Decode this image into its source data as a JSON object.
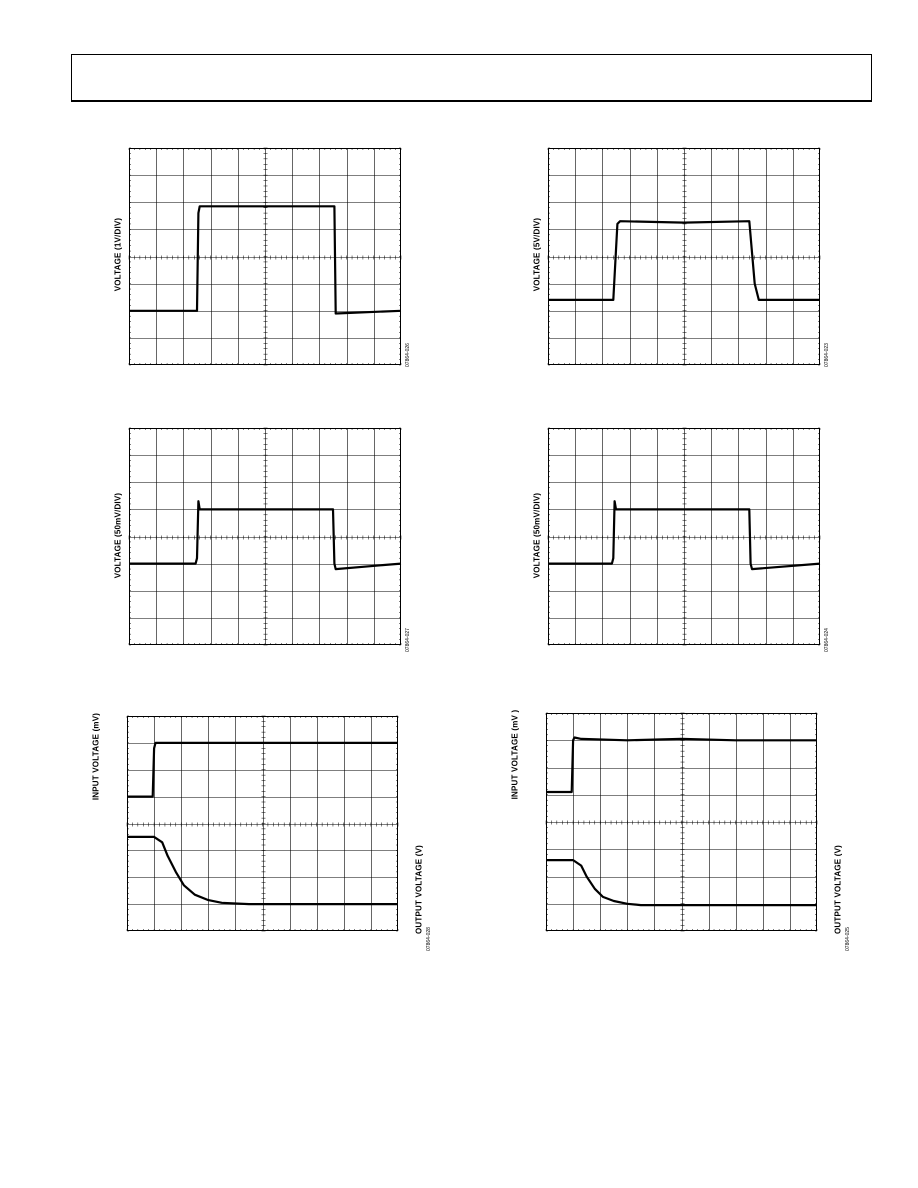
{
  "page": {
    "header": ""
  },
  "chart_data": [
    {
      "type": "line",
      "title": "",
      "ylabel": "VOLTAGE (1V/DIV)",
      "figure_id": "07864-026",
      "grid": true,
      "xlim": [
        0,
        10
      ],
      "ylim": [
        -4,
        4
      ],
      "series": [
        {
          "x": [
            0,
            2.5,
            2.55,
            2.6,
            7.5,
            7.55,
            7.6,
            10
          ],
          "y": [
            -2,
            -2,
            1.6,
            1.85,
            1.85,
            1.85,
            -2.1,
            -2
          ]
        }
      ]
    },
    {
      "type": "line",
      "title": "",
      "ylabel": "VOLTAGE (5V/DIV)",
      "figure_id": "07864-023",
      "grid": true,
      "xlim": [
        0,
        10
      ],
      "ylim": [
        -4,
        4
      ],
      "series": [
        {
          "x": [
            0,
            2.4,
            2.55,
            2.65,
            5,
            7.4,
            7.6,
            7.75,
            10
          ],
          "y": [
            -1.6,
            -1.6,
            1.2,
            1.3,
            1.25,
            1.3,
            -1.0,
            -1.6,
            -1.6
          ]
        }
      ]
    },
    {
      "type": "line",
      "title": "",
      "ylabel": "VOLTAGE (50mV/DIV)",
      "figure_id": "07864-027",
      "grid": true,
      "xlim": [
        0,
        10
      ],
      "ylim": [
        -4,
        4
      ],
      "series": [
        {
          "x": [
            0,
            2.45,
            2.5,
            2.55,
            2.6,
            7.5,
            7.55,
            7.6,
            10
          ],
          "y": [
            -1.0,
            -1.0,
            -0.8,
            1.3,
            1.0,
            1.0,
            -1.0,
            -1.2,
            -1.0
          ]
        }
      ]
    },
    {
      "type": "line",
      "title": "",
      "ylabel": "VOLTAGE (50mV/DIV)",
      "figure_id": "07864-024",
      "grid": true,
      "xlim": [
        0,
        10
      ],
      "ylim": [
        -4,
        4
      ],
      "series": [
        {
          "x": [
            0,
            2.35,
            2.4,
            2.45,
            2.5,
            7.4,
            7.45,
            7.5,
            10
          ],
          "y": [
            -1.0,
            -1.0,
            -0.8,
            1.3,
            1.0,
            1.0,
            -1.0,
            -1.2,
            -1.0
          ]
        }
      ]
    },
    {
      "type": "line",
      "title": "",
      "ylabel": "INPUT VOLTAGE (mV)",
      "y2label": "OUTPUT VOLTAGE (V)",
      "figure_id": "07864-028",
      "grid": true,
      "xlim": [
        0,
        10
      ],
      "ylim": [
        -4,
        4
      ],
      "series": [
        {
          "x": [
            0,
            0.95,
            1.0,
            1.05,
            1.3,
            10
          ],
          "y": [
            1.0,
            1.0,
            2.8,
            3.0,
            3.0,
            3.0
          ]
        },
        {
          "x": [
            0,
            1.0,
            1.3,
            1.5,
            1.8,
            2.1,
            2.5,
            3.0,
            3.5,
            4.5,
            6,
            10
          ],
          "y": [
            -0.5,
            -0.5,
            -0.7,
            -1.2,
            -1.8,
            -2.3,
            -2.65,
            -2.85,
            -2.95,
            -3.0,
            -3.0,
            -3.0
          ]
        }
      ]
    },
    {
      "type": "line",
      "title": "",
      "ylabel": "INPUT VOLTAGE (mV )",
      "y2label": "OUTPUT VOLTAGE (V)",
      "figure_id": "07864-025",
      "grid": true,
      "xlim": [
        0,
        10
      ],
      "ylim": [
        -4,
        4
      ],
      "series": [
        {
          "x": [
            0,
            0.95,
            1.0,
            1.05,
            1.3,
            3,
            5,
            7,
            10
          ],
          "y": [
            1.1,
            1.1,
            3.0,
            3.1,
            3.05,
            3.0,
            3.05,
            3.0,
            3.0
          ]
        },
        {
          "x": [
            0,
            1.0,
            1.3,
            1.5,
            1.8,
            2.1,
            2.5,
            3.0,
            3.5,
            4.5,
            10
          ],
          "y": [
            -1.4,
            -1.4,
            -1.6,
            -2.0,
            -2.45,
            -2.75,
            -2.9,
            -3.0,
            -3.05,
            -3.05,
            -3.05
          ]
        }
      ]
    }
  ]
}
